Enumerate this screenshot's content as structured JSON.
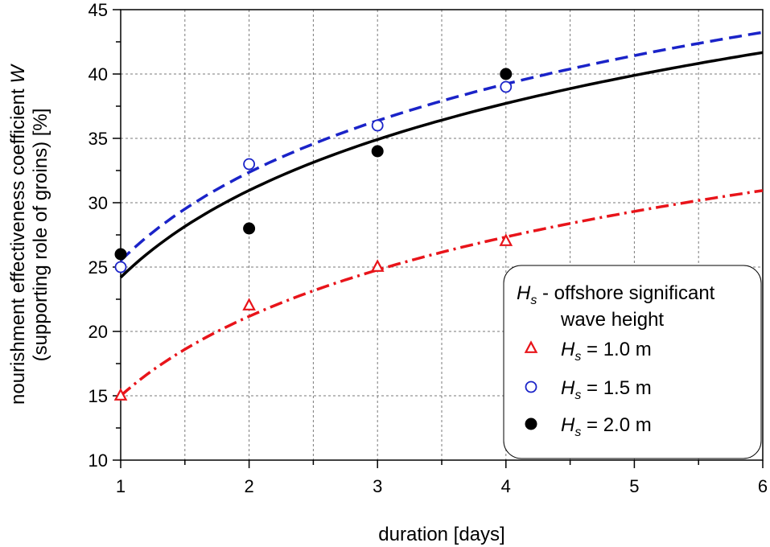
{
  "chart_data": {
    "type": "scatter",
    "xlabel": "duration [days]",
    "ylabel_line1_prefix": "nourishment effectiveness coefficient ",
    "ylabel_line1_symbol": "W",
    "ylabel_line2": "(supporting role of groins)  [%]",
    "xlim": [
      1,
      6
    ],
    "ylim": [
      10,
      45
    ],
    "x_ticks": [
      1,
      2,
      3,
      4,
      5,
      6
    ],
    "y_ticks": [
      10,
      15,
      20,
      25,
      30,
      35,
      40,
      45
    ],
    "grid": true,
    "legend": {
      "placement": "bottom-right",
      "title_symbol": "H",
      "title_subscript": "s",
      "title_rest": " - offshore significant",
      "title_line2": "wave height"
    },
    "series": [
      {
        "symbol": "H",
        "subscript": "s",
        "value_text": " = 1.0 m",
        "marker": "triangle",
        "color": "#e8141a",
        "line_style": "dashdot",
        "x": [
          1,
          2,
          3,
          4
        ],
        "y": [
          15,
          22,
          25,
          27
        ],
        "fit": {
          "a": 15.0,
          "b": 8.9
        }
      },
      {
        "symbol": "H",
        "subscript": "s",
        "value_text": " = 1.5 m",
        "marker": "circle-open",
        "color": "#1a23c8",
        "line_style": "dashed",
        "x": [
          1,
          2,
          3,
          4
        ],
        "y": [
          25,
          33,
          36,
          39
        ],
        "fit": {
          "a": 25.5,
          "b": 9.9
        }
      },
      {
        "symbol": "H",
        "subscript": "s",
        "value_text": " = 2.0 m",
        "marker": "circle-filled",
        "color": "#000000",
        "line_style": "solid",
        "x": [
          1,
          2,
          3,
          4
        ],
        "y": [
          26,
          28,
          34,
          40
        ],
        "fit": {
          "a": 24.2,
          "b": 9.75
        }
      }
    ]
  }
}
